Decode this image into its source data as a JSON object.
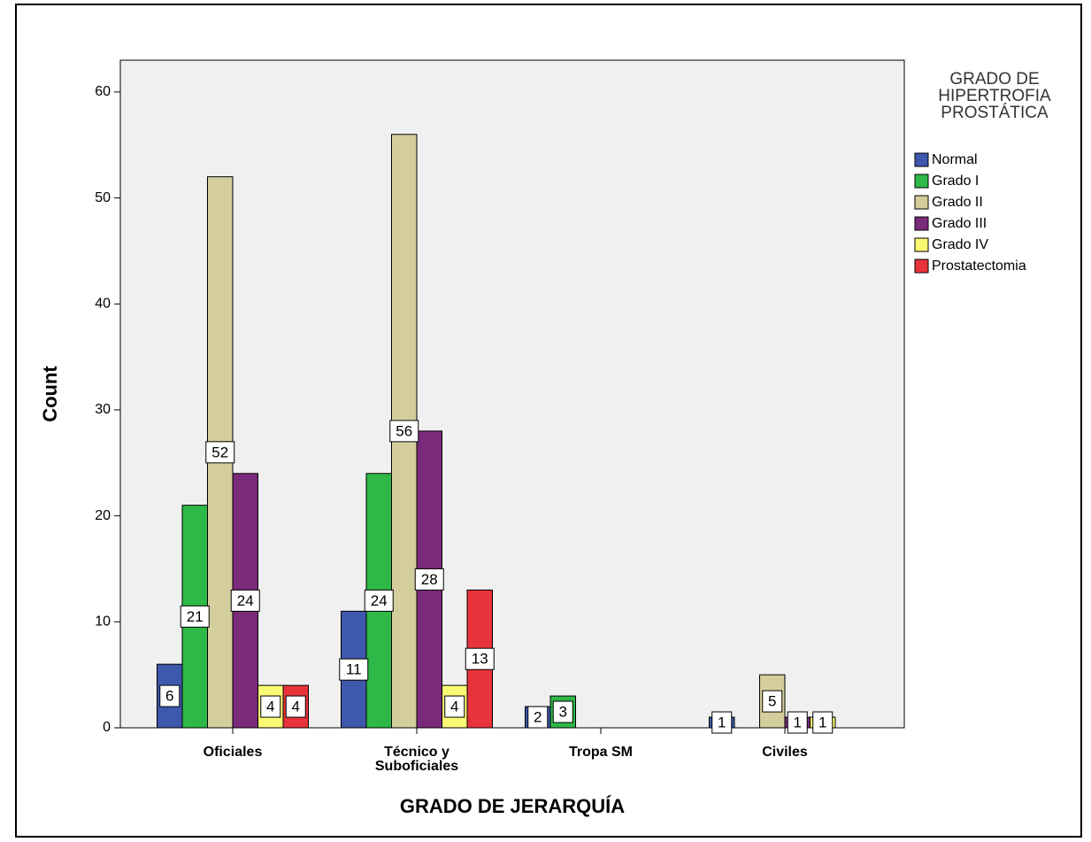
{
  "chart_data": {
    "type": "bar",
    "x_label": "GRADO DE JERARQUÍA",
    "y_label": "Count",
    "legend_title": "GRADO DE HIPERTROFIA PROSTÁTICA",
    "categories": [
      "Oficiales",
      "Técnico y Suboficiales",
      "Tropa SM",
      "Civiles"
    ],
    "series": [
      {
        "name": "Normal",
        "color": "#3e58ac",
        "values": [
          6,
          11,
          2,
          1
        ]
      },
      {
        "name": "Grado I",
        "color": "#2eb848",
        "values": [
          21,
          24,
          3,
          null
        ]
      },
      {
        "name": "Grado II",
        "color": "#d4ce9c",
        "values": [
          52,
          56,
          null,
          5
        ]
      },
      {
        "name": "Grado III",
        "color": "#7a2a7a",
        "values": [
          24,
          28,
          null,
          1
        ]
      },
      {
        "name": "Grado IV",
        "color": "#fbf873",
        "values": [
          4,
          4,
          null,
          1
        ]
      },
      {
        "name": "Prostatectomia",
        "color": "#e8333a",
        "values": [
          4,
          13,
          null,
          null
        ]
      }
    ],
    "ylim": [
      0,
      63
    ],
    "yticks": [
      0,
      10,
      20,
      30,
      40,
      50,
      60
    ],
    "grid": false,
    "legend": "right"
  }
}
